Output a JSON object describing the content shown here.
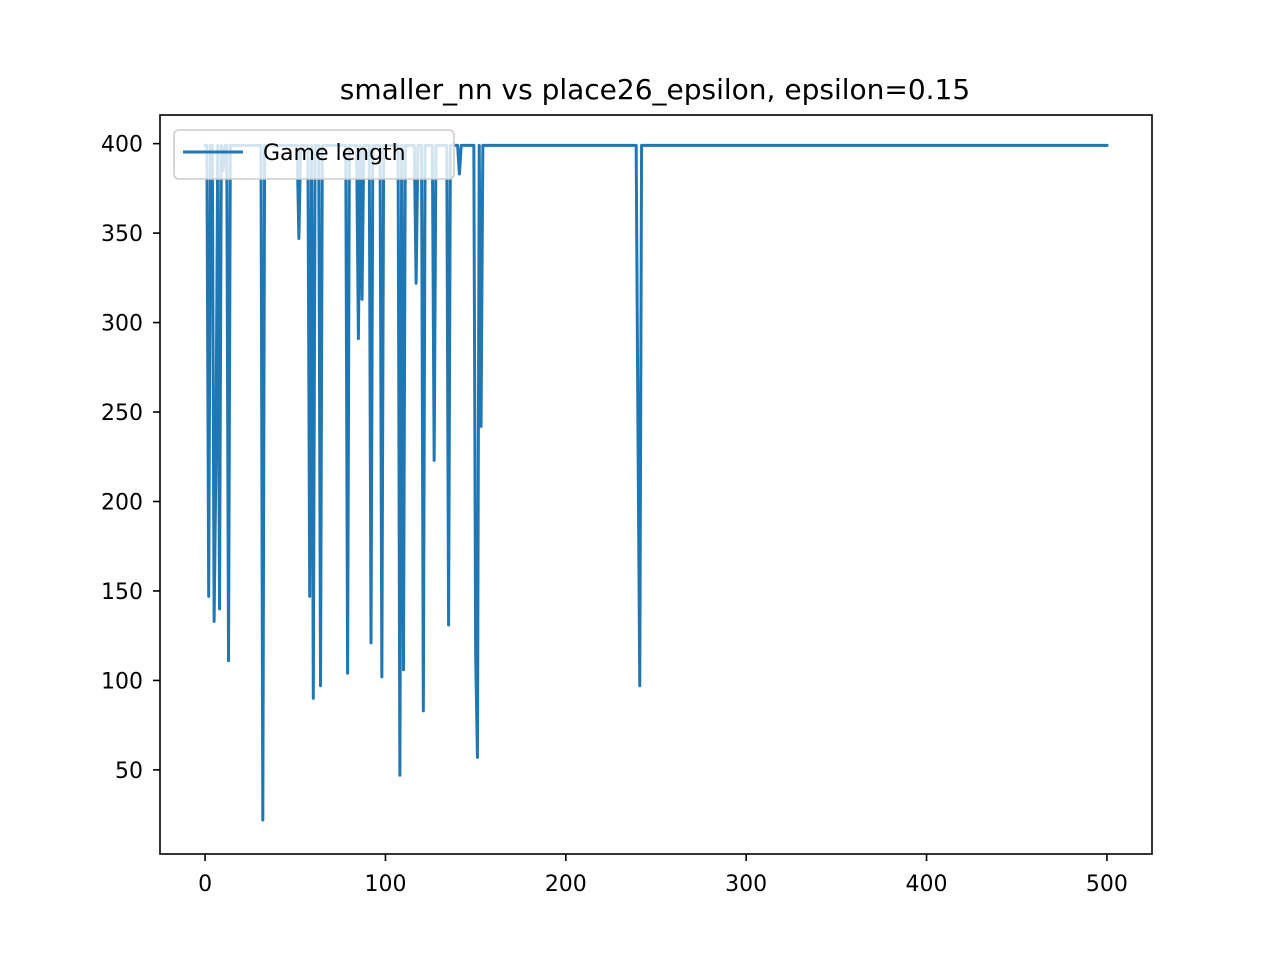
{
  "chart_data": {
    "type": "line",
    "title": "smaller_nn vs place26_epsilon, epsilon=0.15",
    "xlabel": "",
    "ylabel": "",
    "xlim": [
      -25,
      525
    ],
    "ylim": [
      3,
      416
    ],
    "xticks": [
      0,
      100,
      200,
      300,
      400,
      500
    ],
    "yticks": [
      50,
      100,
      150,
      200,
      250,
      300,
      350,
      400
    ],
    "grid": false,
    "legend_position": "upper-left",
    "colors": {
      "series": "#1f77b4",
      "axes": "#000000",
      "background": "#ffffff",
      "legend_border": "#cccccc"
    },
    "series": [
      {
        "name": "Game length",
        "points": [
          [
            0,
            399
          ],
          [
            1,
            399
          ],
          [
            2,
            147
          ],
          [
            3,
            399
          ],
          [
            4,
            399
          ],
          [
            5,
            133
          ],
          [
            6,
            222
          ],
          [
            7,
            399
          ],
          [
            8,
            140
          ],
          [
            9,
            399
          ],
          [
            10,
            385
          ],
          [
            11,
            399
          ],
          [
            12,
            399
          ],
          [
            13,
            111
          ],
          [
            14,
            399
          ],
          [
            15,
            399
          ],
          [
            31,
            399
          ],
          [
            32,
            22
          ],
          [
            33,
            399
          ],
          [
            50,
            399
          ],
          [
            51,
            399
          ],
          [
            52,
            347
          ],
          [
            53,
            399
          ],
          [
            57,
            399
          ],
          [
            58,
            147
          ],
          [
            59,
            399
          ],
          [
            60,
            90
          ],
          [
            61,
            399
          ],
          [
            63,
            399
          ],
          [
            64,
            97
          ],
          [
            65,
            399
          ],
          [
            78,
            399
          ],
          [
            79,
            104
          ],
          [
            80,
            399
          ],
          [
            84,
            399
          ],
          [
            85,
            291
          ],
          [
            86,
            399
          ],
          [
            87,
            313
          ],
          [
            88,
            399
          ],
          [
            91,
            399
          ],
          [
            92,
            121
          ],
          [
            93,
            399
          ],
          [
            97,
            399
          ],
          [
            98,
            102
          ],
          [
            99,
            399
          ],
          [
            107,
            399
          ],
          [
            108,
            47
          ],
          [
            109,
            399
          ],
          [
            110,
            106
          ],
          [
            111,
            399
          ],
          [
            116,
            399
          ],
          [
            117,
            322
          ],
          [
            118,
            399
          ],
          [
            120,
            399
          ],
          [
            121,
            83
          ],
          [
            122,
            399
          ],
          [
            126,
            399
          ],
          [
            127,
            223
          ],
          [
            128,
            399
          ],
          [
            134,
            399
          ],
          [
            135,
            131
          ],
          [
            136,
            399
          ],
          [
            140,
            399
          ],
          [
            141,
            383
          ],
          [
            142,
            399
          ],
          [
            149,
            399
          ],
          [
            150,
            115
          ],
          [
            151,
            57
          ],
          [
            152,
            399
          ],
          [
            153,
            242
          ],
          [
            154,
            399
          ],
          [
            160,
            399
          ],
          [
            238,
            399
          ],
          [
            239,
            399
          ],
          [
            240,
            240
          ],
          [
            241,
            97
          ],
          [
            242,
            399
          ],
          [
            500,
            399
          ]
        ]
      }
    ]
  }
}
